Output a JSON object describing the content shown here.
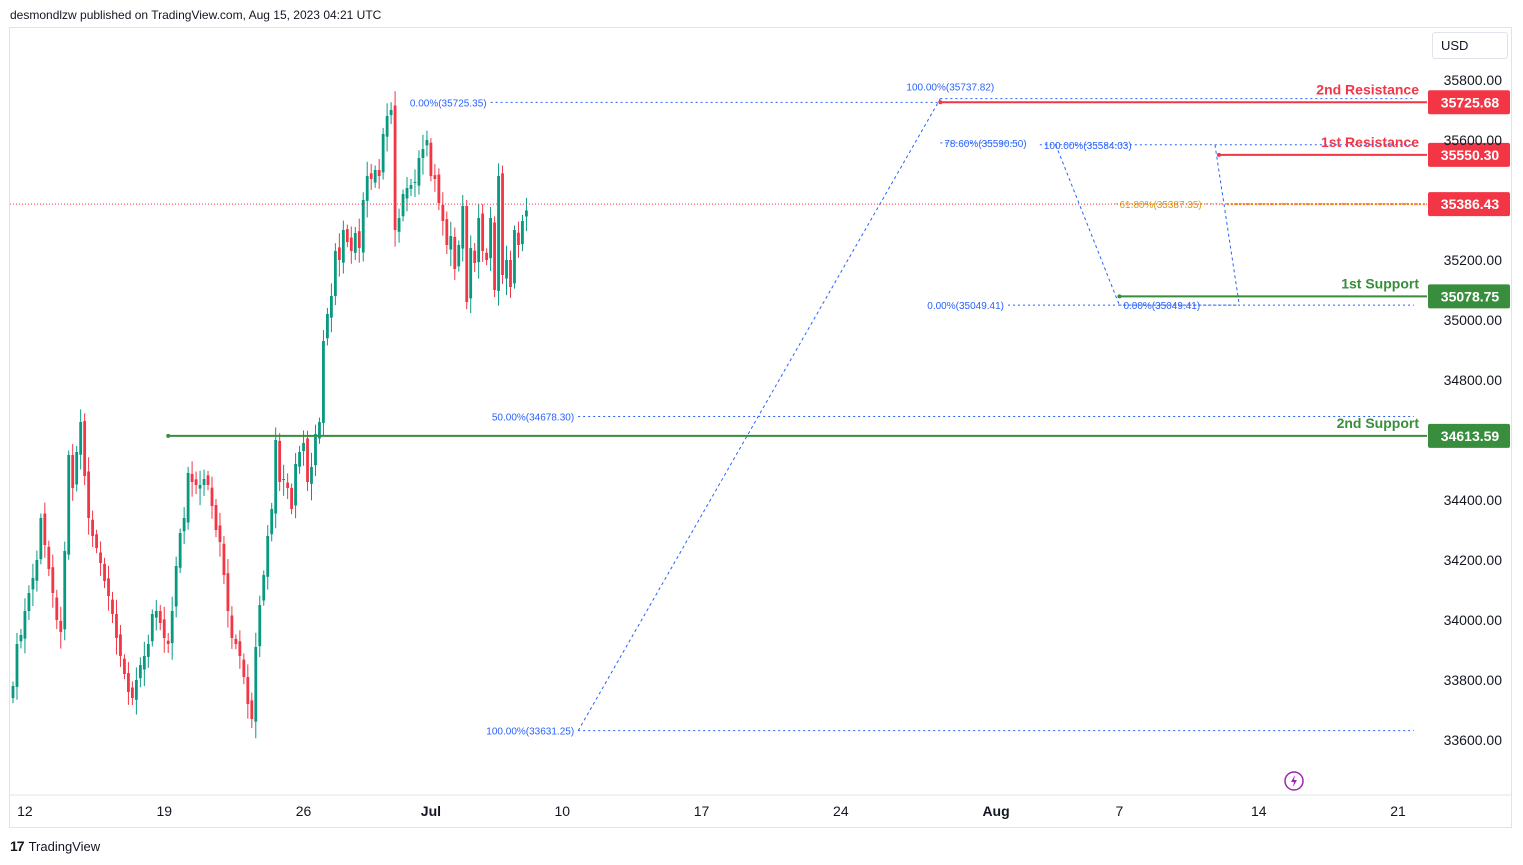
{
  "header": {
    "text": "desmondlzw published on TradingView.com, Aug 15, 2023 04:21 UTC"
  },
  "currency_button": "USD",
  "footer": {
    "brand": "TradingView",
    "logo": "tradingview-logo-icon"
  },
  "colors": {
    "up": "#089981",
    "down": "#f23645",
    "resistance": "#f23645",
    "support": "#388e3c",
    "fib": "#2962ff",
    "fib_text": "#2962ff",
    "fib_gold": "#d4a017",
    "price_line": "#f23645"
  },
  "chart_data": {
    "type": "candlestick",
    "ylim": [
      33580,
      35840
    ],
    "y_ticks": [
      35800,
      35600,
      35200,
      35000,
      34800,
      34400,
      34200,
      34000,
      33800,
      33600
    ],
    "y_tick_labels": [
      "35800.00",
      "35600.00",
      "35200.00",
      "35000.00",
      "34800.00",
      "34400.00",
      "34200.00",
      "34000.00",
      "33800.00",
      "33600.00"
    ],
    "x_labels": [
      {
        "label": "12",
        "bar": 3,
        "bold": false
      },
      {
        "label": "19",
        "bar": 38,
        "bold": false
      },
      {
        "label": "26",
        "bar": 73,
        "bold": false
      },
      {
        "label": "Jul",
        "bar": 105,
        "bold": true
      },
      {
        "label": "10",
        "bar": 138,
        "bold": false
      },
      {
        "label": "17",
        "bar": 173,
        "bold": false
      },
      {
        "label": "24",
        "bar": 208,
        "bold": false
      },
      {
        "label": "Aug",
        "bar": 247,
        "bold": true
      },
      {
        "label": "7",
        "bar": 278,
        "bold": false
      },
      {
        "label": "14",
        "bar": 313,
        "bold": false
      },
      {
        "label": "21",
        "bar": 348,
        "bold": false
      }
    ],
    "close": [
      33780,
      33920,
      33950,
      34030,
      34090,
      34140,
      34200,
      34340,
      34250,
      34170,
      34090,
      34000,
      33960,
      34230,
      34550,
      34440,
      34560,
      34660,
      34480,
      34340,
      34280,
      34240,
      34190,
      34130,
      34080,
      34020,
      33940,
      33880,
      33820,
      33760,
      33740,
      33800,
      33850,
      33880,
      33920,
      34020,
      34030,
      33990,
      33940,
      33920,
      34030,
      34180,
      34290,
      34340,
      34490,
      34460,
      34450,
      34450,
      34470,
      34450,
      34380,
      34300,
      34260,
      34150,
      34030,
      33940,
      33920,
      33880,
      33810,
      33720,
      33670,
      33910,
      34050,
      34150,
      34280,
      34370,
      34600,
      34460,
      34470,
      34440,
      34370,
      34520,
      34560,
      34590,
      34460,
      34510,
      34620,
      34660,
      34930,
      35020,
      35080,
      35230,
      35200,
      35300,
      35260,
      35230,
      35290,
      35240,
      35400,
      35480,
      35470,
      35500,
      35480,
      35620,
      35680,
      35700,
      35300,
      35340,
      35420,
      35440,
      35450,
      35460,
      35540,
      35570,
      35600,
      35480,
      35470,
      35390,
      35330,
      35250,
      35280,
      35170,
      35250,
      35380,
      35060,
      35240,
      35190,
      35340,
      35230,
      35200,
      35340,
      35100,
      35480,
      35150,
      35200,
      35110,
      35300,
      35250,
      35330,
      35365
    ],
    "resistances": [
      {
        "label": "2nd Resistance",
        "price": 35725.68,
        "price_label": "35725.68",
        "start_bar": 233
      },
      {
        "label": "1st Resistance",
        "price": 35550.3,
        "price_label": "35550.30",
        "start_bar": 303
      }
    ],
    "supports": [
      {
        "label": "1st Support",
        "price": 35078.75,
        "price_label": "35078.75",
        "start_bar": 278
      },
      {
        "label": "2nd Support",
        "price": 34613.59,
        "price_label": "34613.59",
        "start_bar": 39
      }
    ],
    "current_price": {
      "price": 35386.43,
      "label": "35386.43"
    },
    "fib_lines": [
      {
        "price": 35725.35,
        "label": "0.00%(35725.35)",
        "from_bar": 120,
        "to_bar": 233,
        "label_side": "left"
      },
      {
        "price": 34678.3,
        "label": "50.00%(34678.30)",
        "from_bar": 142,
        "to_bar": 352,
        "label_side": "left"
      },
      {
        "price": 33631.25,
        "label": "100.00%(33631.25)",
        "from_bar": 142,
        "to_bar": 352,
        "label_side": "left"
      },
      {
        "price": 35737.82,
        "label": "100.00%(35737.82)",
        "from_bar": 233,
        "to_bar": 352,
        "label_side": "top"
      },
      {
        "price": 35590.5,
        "label": "78.60%(35590.50)",
        "from_bar": 233,
        "to_bar": 253,
        "label_side": "inline"
      },
      {
        "price": 35049.41,
        "label": "0.00%(35049.41)",
        "from_bar": 250,
        "to_bar": 352,
        "label_side": "left"
      },
      {
        "price": 35584.03,
        "label": "100.00%(35584.03)",
        "from_bar": 258,
        "to_bar": 352,
        "label_side": "inline"
      },
      {
        "price": 35387.35,
        "label": "61.80%(35387.35)",
        "from_bar": 277,
        "to_bar": 352,
        "label_side": "inline",
        "gold": true
      },
      {
        "price": 35049.41,
        "label": "0.00%(35049.41)",
        "from_bar": 278,
        "to_bar": 308,
        "label_side": "inline"
      }
    ]
  }
}
